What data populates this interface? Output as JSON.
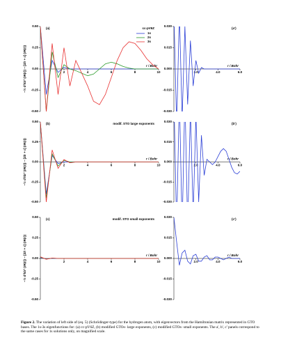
{
  "chart_data": [
    {
      "type": "line",
      "panel": "(a)",
      "legend_title": "cc-pV6Z",
      "ylabel": "−½ d²/dr² (rR(r)) − [Z/r + ε] (rR(r))",
      "xlabel": "r / Bohr",
      "xlim": [
        0,
        10
      ],
      "xticks": [
        2,
        4,
        6,
        8,
        10
      ],
      "ylim": [
        -0.5,
        0.5
      ],
      "yticks": [
        {
          "value": 0.5,
          "label": "0.50"
        },
        {
          "value": 0.25,
          "label": "0.25"
        },
        {
          "value": 0,
          "label": "0.00"
        },
        {
          "value": -0.25,
          "label": "-0.25"
        },
        {
          "value": -0.5,
          "label": "-0.50"
        }
      ],
      "x": [
        0,
        0.5,
        1,
        1.5,
        2,
        2.5,
        3,
        3.5,
        4,
        4.5,
        5,
        5.5,
        6,
        6.5,
        7,
        7.5,
        8,
        8.5,
        9,
        9.5,
        10
      ],
      "series": [
        {
          "name": "1s",
          "color": "#2b3fd6",
          "values": [
            0.5,
            -0.3,
            0.1,
            -0.04,
            0.02,
            0,
            0,
            0,
            0,
            0,
            0,
            0,
            0,
            0,
            0,
            0,
            0,
            0,
            0,
            0,
            0
          ]
        },
        {
          "name": "2s",
          "color": "#2a9a2a",
          "values": [
            0.5,
            -0.5,
            0.2,
            -0.1,
            0.05,
            0,
            -0.02,
            -0.05,
            -0.08,
            -0.06,
            0,
            0.06,
            0.08,
            0.06,
            0.03,
            0.01,
            0,
            0,
            0,
            0,
            0
          ]
        },
        {
          "name": "3s",
          "color": "#e83030",
          "values": [
            0.5,
            -0.5,
            0.3,
            -0.3,
            0.25,
            -0.2,
            0.1,
            -0.05,
            -0.2,
            -0.38,
            -0.42,
            -0.3,
            -0.1,
            0.1,
            0.25,
            0.32,
            0.3,
            0.22,
            0.12,
            0.05,
            0
          ]
        }
      ]
    },
    {
      "type": "line",
      "panel": "(a')",
      "xlabel": "r / Bohr",
      "xlim": [
        0,
        6
      ],
      "xticks": [
        {
          "value": 2,
          "label": "2.0"
        },
        {
          "value": 4,
          "label": "4.0"
        },
        {
          "value": 6,
          "label": "6.0"
        }
      ],
      "ylim": [
        -0.03,
        0.03
      ],
      "yticks": [
        {
          "value": 0.03,
          "label": "0.030"
        },
        {
          "value": 0.015,
          "label": "0.015"
        },
        {
          "value": 0,
          "label": "0.000"
        },
        {
          "value": -0.015,
          "label": "-0.015"
        },
        {
          "value": -0.03,
          "label": "-0.030"
        }
      ],
      "x": [
        0,
        0.25,
        0.5,
        0.75,
        1,
        1.25,
        1.5,
        1.75,
        2,
        2.25,
        2.5,
        2.75,
        3,
        3.25,
        3.5,
        3.75,
        4,
        4.25,
        4.5,
        4.75,
        5,
        5.25,
        5.5,
        5.75,
        6
      ],
      "series": [
        {
          "name": "1s",
          "color": "#2b3fd6",
          "values": [
            0.04,
            -0.04,
            0.04,
            -0.035,
            0.03,
            -0.025,
            0.02,
            -0.012,
            0.006,
            -0.003,
            0.001,
            0,
            0,
            0,
            0,
            0,
            0,
            0,
            0,
            0,
            0,
            0,
            0,
            0,
            0
          ]
        }
      ]
    },
    {
      "type": "line",
      "panel": "(b)",
      "title": "modif. STO large exponents",
      "ylabel": "−½ d²/dr² (rR(r)) − [Z/r + ε] (rR(r))",
      "xlabel": "r / Bohr",
      "xlim": [
        0,
        10
      ],
      "xticks": [
        2,
        4,
        6,
        8,
        10
      ],
      "ylim": [
        -0.5,
        0.5
      ],
      "yticks": [
        {
          "value": 0.5,
          "label": "0.50"
        },
        {
          "value": 0.25,
          "label": "0.25"
        },
        {
          "value": 0,
          "label": "0.00"
        },
        {
          "value": -0.25,
          "label": "-0.25"
        },
        {
          "value": -0.5,
          "label": "-0.50"
        }
      ],
      "x": [
        0,
        0.5,
        1,
        1.5,
        2,
        2.5,
        3,
        3.5,
        4,
        4.5,
        5,
        5.5,
        6,
        6.5,
        7,
        7.5,
        8,
        8.5,
        9,
        9.5,
        10
      ],
      "series": [
        {
          "name": "1s",
          "color": "#2b3fd6",
          "values": [
            0.5,
            -0.4,
            0.08,
            -0.02,
            0,
            0,
            0,
            0,
            0,
            0,
            0,
            0,
            0,
            0,
            0,
            0,
            0,
            0,
            0,
            0,
            0
          ]
        },
        {
          "name": "2s",
          "color": "#2a9a2a",
          "values": [
            0.5,
            -0.45,
            0.1,
            -0.05,
            0.02,
            0,
            0,
            0,
            0,
            0,
            0,
            0,
            0,
            0,
            0,
            0,
            0,
            0,
            0,
            0,
            0
          ]
        },
        {
          "name": "3s",
          "color": "#e83030",
          "values": [
            0.5,
            -0.5,
            0.15,
            -0.08,
            0.03,
            -0.01,
            0,
            0,
            0,
            0,
            0,
            0,
            0,
            0,
            0,
            0,
            0,
            0,
            0,
            0,
            0
          ]
        }
      ]
    },
    {
      "type": "line",
      "panel": "(b')",
      "xlabel": "r / Bohr",
      "xlim": [
        0,
        6
      ],
      "xticks": [
        {
          "value": 2,
          "label": "2.0"
        },
        {
          "value": 4,
          "label": "4.0"
        },
        {
          "value": 6,
          "label": "6.0"
        }
      ],
      "ylim": [
        -0.03,
        0.03
      ],
      "yticks": [
        {
          "value": 0.03,
          "label": "0.030"
        },
        {
          "value": 0.015,
          "label": "0.015"
        },
        {
          "value": 0,
          "label": "0.000"
        },
        {
          "value": -0.015,
          "label": "-0.015"
        },
        {
          "value": -0.03,
          "label": "-0.030"
        }
      ],
      "x": [
        0,
        0.25,
        0.5,
        0.75,
        1,
        1.25,
        1.5,
        1.75,
        2,
        2.25,
        2.5,
        2.75,
        3,
        3.25,
        3.5,
        3.75,
        4,
        4.25,
        4.5,
        4.75,
        5,
        5.25,
        5.5,
        5.75,
        6
      ],
      "series": [
        {
          "name": "1s",
          "color": "#2b3fd6",
          "values": [
            0.05,
            -0.05,
            0.05,
            -0.05,
            0.05,
            -0.05,
            0.04,
            -0.04,
            0.035,
            -0.03,
            0.02,
            -0.01,
            0.002,
            0,
            -0.002,
            0,
            0.004,
            0.008,
            0.01,
            0.008,
            0.002,
            -0.004,
            -0.008,
            -0.009,
            -0.007
          ]
        }
      ]
    },
    {
      "type": "line",
      "panel": "(c)",
      "title": "modif. STO small exponents",
      "ylabel": "−½ d²/dr² (rR(r)) − [Z/r + ε] (rR(r))",
      "xlabel": "r / Bohr",
      "xlim": [
        0,
        10
      ],
      "xticks": [
        2,
        4,
        6,
        8,
        10
      ],
      "ylim": [
        -0.5,
        0.5
      ],
      "yticks": [
        {
          "value": 0.5,
          "label": "0.50"
        },
        {
          "value": 0.25,
          "label": "0.25"
        },
        {
          "value": 0,
          "label": "0.00"
        },
        {
          "value": -0.25,
          "label": "-0.25"
        },
        {
          "value": -0.5,
          "label": "-0.50"
        }
      ],
      "x": [
        0,
        0.5,
        1,
        1.5,
        2,
        2.5,
        3,
        3.5,
        4,
        4.5,
        5,
        5.5,
        6,
        6.5,
        7,
        7.5,
        8,
        8.5,
        9,
        9.5,
        10
      ],
      "series": [
        {
          "name": "1s",
          "color": "#2b3fd6",
          "values": [
            0.01,
            -0.005,
            0,
            0,
            0,
            0,
            0,
            0,
            0,
            0,
            0,
            0,
            0,
            0,
            0,
            0,
            0,
            0,
            0,
            0,
            0
          ]
        },
        {
          "name": "2s",
          "color": "#2a9a2a",
          "values": [
            0.015,
            -0.008,
            0.003,
            0,
            0,
            0,
            0,
            0,
            0,
            0,
            0,
            0,
            0,
            0,
            0,
            0,
            0,
            0,
            0,
            0,
            0
          ]
        },
        {
          "name": "3s",
          "color": "#e83030",
          "values": [
            0.02,
            -0.01,
            0.005,
            0,
            0,
            0,
            0,
            0,
            0,
            0,
            0,
            0,
            0,
            0,
            0,
            0,
            0,
            0,
            0,
            0,
            0
          ]
        }
      ]
    },
    {
      "type": "line",
      "panel": "(c')",
      "xlabel": "r / Bohr",
      "xlim": [
        0,
        6
      ],
      "xticks": [
        {
          "value": 2,
          "label": "2.0"
        },
        {
          "value": 4,
          "label": "4.0"
        },
        {
          "value": 6,
          "label": "6.0"
        }
      ],
      "ylim": [
        -0.03,
        0.03
      ],
      "yticks": [
        {
          "value": 0.03,
          "label": "0.030"
        },
        {
          "value": 0.015,
          "label": "0.015"
        },
        {
          "value": 0,
          "label": "0.000"
        },
        {
          "value": -0.015,
          "label": "-0.015"
        },
        {
          "value": -0.03,
          "label": "-0.030"
        }
      ],
      "x": [
        0,
        0.25,
        0.5,
        0.75,
        1,
        1.25,
        1.5,
        1.75,
        2,
        2.25,
        2.5,
        2.75,
        3,
        3.25,
        3.5,
        3.75,
        4,
        4.25,
        4.5,
        4.75,
        5,
        5.25,
        5.5,
        5.75,
        6
      ],
      "series": [
        {
          "name": "1s",
          "color": "#2b3fd6",
          "values": [
            0.03,
            0.012,
            -0.005,
            0.004,
            0.006,
            -0.002,
            -0.004,
            0.002,
            0.003,
            -0.002,
            -0.002,
            0.001,
            0.002,
            -0.001,
            -0.001,
            0.001,
            0.001,
            0,
            -0.001,
            0,
            0.001,
            0,
            0,
            0,
            0
          ]
        }
      ]
    }
  ],
  "caption": {
    "label": "Figure 2.",
    "text": "The variation of left side of (eq. 5) (Schrödinger-type) for the hydrogen atom, with eigenvectors from the Hamiltonian matrix represented in GTO bases. The 1s-3s eigenfunctions for: (a) cc-pV6Z, (b) modified GTOs- large exponents, (c) modified GTOs- small exponents. The a', b', c' panels correspond to the same cases for 1s solutions only, on magnified scale."
  }
}
